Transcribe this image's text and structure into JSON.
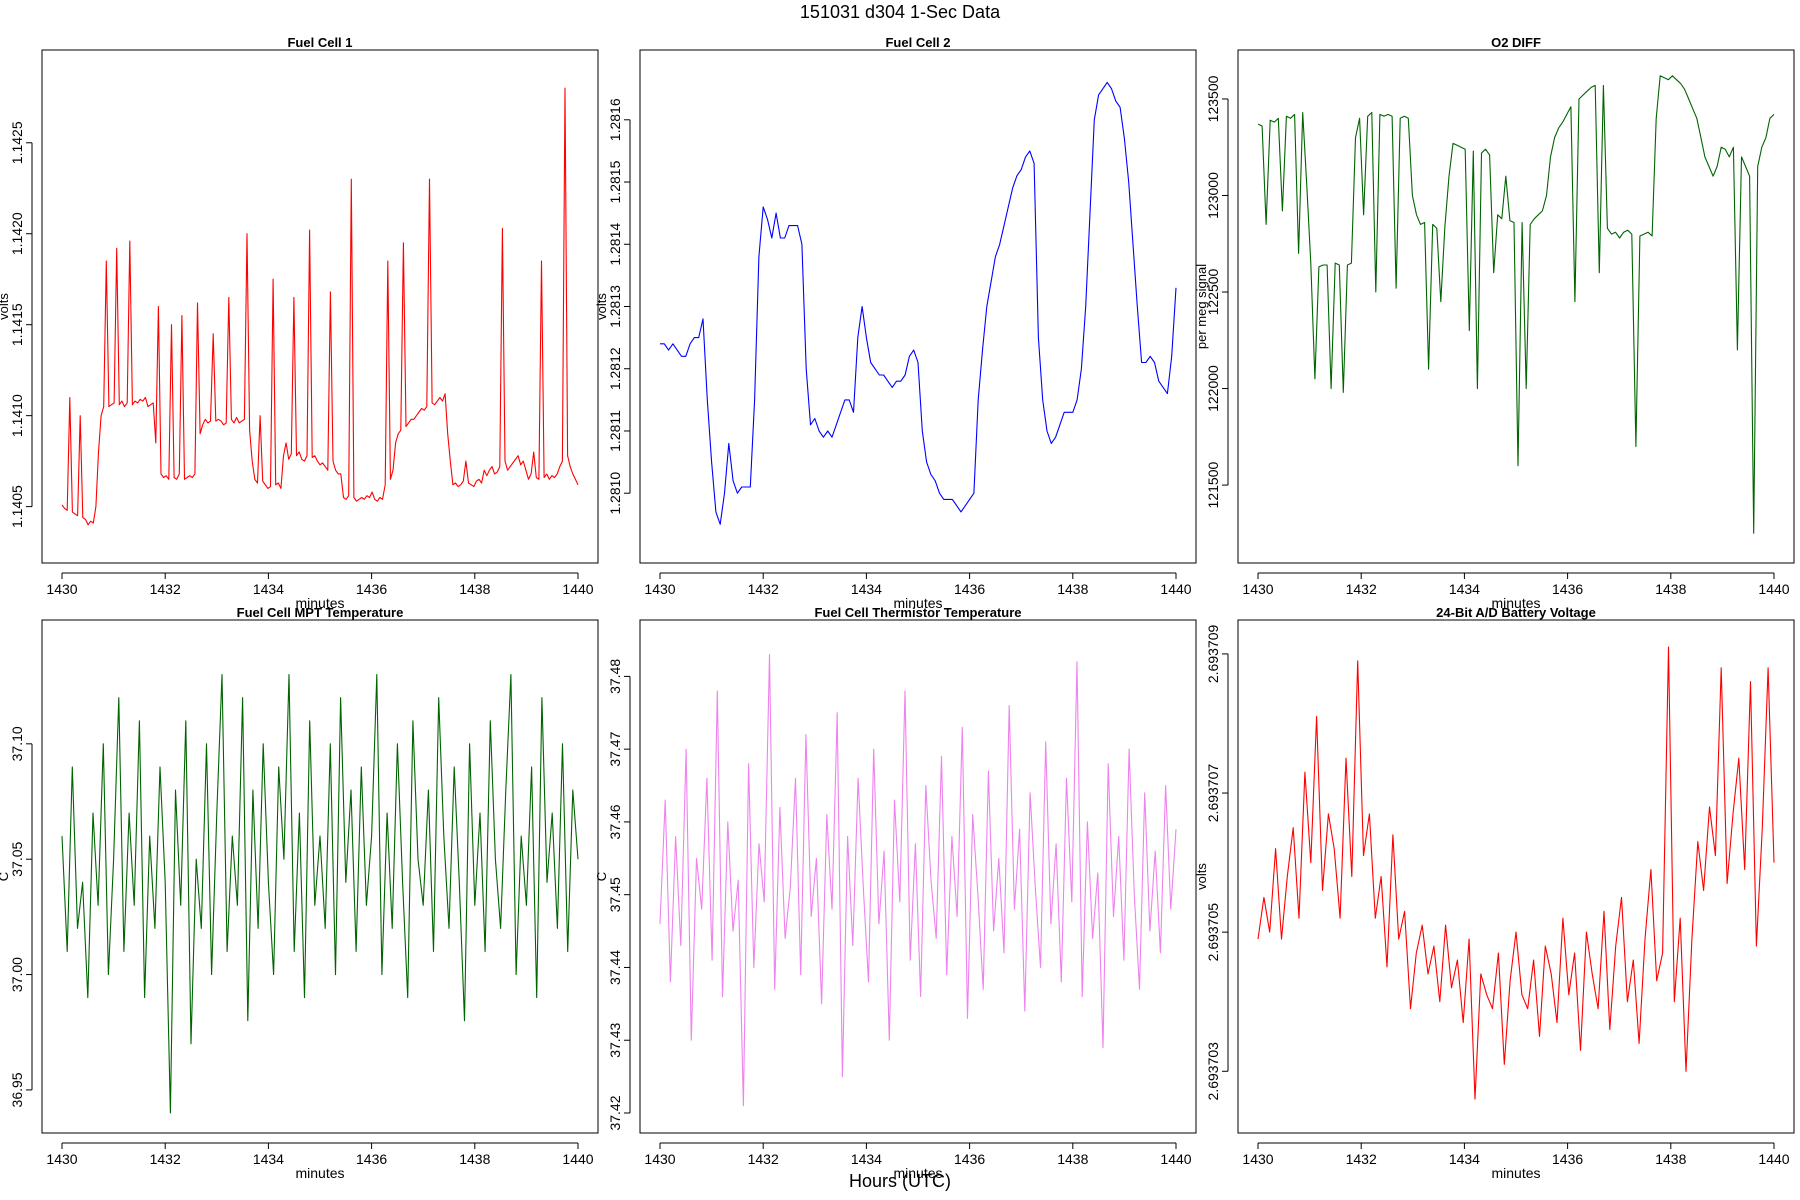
{
  "figure": {
    "title": "151031   d304   1-Sec Data",
    "xlabel": "Hours (UTC)"
  },
  "chart_data": [
    {
      "type": "line",
      "title": "Fuel Cell 1",
      "xlabel": "minutes",
      "ylabel": "volts",
      "color": "#ff0000",
      "xlim": [
        1430,
        1440
      ],
      "ylim": [
        1.1403,
        1.1429
      ],
      "xticks": [
        1430,
        1432,
        1434,
        1436,
        1438,
        1440
      ],
      "yticks": [
        1.1405,
        1.141,
        1.1415,
        1.142,
        1.1425
      ],
      "ytick_labels": [
        "1.1405",
        "1.1410",
        "1.1415",
        "1.1420",
        "1.1425"
      ],
      "series": [
        {
          "name": "Fuel Cell 1",
          "x_start": 1430,
          "x_end": 1440,
          "values": [
            1.14051,
            1.14049,
            1.14048,
            1.1411,
            1.14047,
            1.14046,
            1.14045,
            1.141,
            1.14044,
            1.14043,
            1.1404,
            1.14042,
            1.14041,
            1.1405,
            1.1408,
            1.141,
            1.14105,
            1.14185,
            1.14105,
            1.14106,
            1.14107,
            1.14192,
            1.14106,
            1.14108,
            1.14105,
            1.14107,
            1.14196,
            1.14106,
            1.14108,
            1.14107,
            1.14109,
            1.14108,
            1.1411,
            1.14105,
            1.14106,
            1.14107,
            1.14085,
            1.1416,
            1.14068,
            1.14066,
            1.14067,
            1.14065,
            1.1415,
            1.14066,
            1.14065,
            1.14068,
            1.14155,
            1.14065,
            1.14066,
            1.14067,
            1.14066,
            1.14068,
            1.14162,
            1.1409,
            1.14095,
            1.14098,
            1.14096,
            1.14097,
            1.14145,
            1.14097,
            1.14098,
            1.14097,
            1.14095,
            1.14096,
            1.14165,
            1.14098,
            1.14096,
            1.14099,
            1.14096,
            1.14097,
            1.14098,
            1.142,
            1.14092,
            1.14075,
            1.14065,
            1.14063,
            1.141,
            1.14064,
            1.14062,
            1.1406,
            1.14061,
            1.14175,
            1.14062,
            1.14063,
            1.1406,
            1.14078,
            1.14085,
            1.14076,
            1.14079,
            1.14165,
            1.14078,
            1.1408,
            1.14076,
            1.14075,
            1.14078,
            1.14202,
            1.14077,
            1.14078,
            1.14075,
            1.14073,
            1.14074,
            1.14072,
            1.1407,
            1.14168,
            1.14075,
            1.1407,
            1.14068,
            1.14068,
            1.14055,
            1.14054,
            1.14056,
            1.1423,
            1.14055,
            1.14053,
            1.14054,
            1.14055,
            1.14054,
            1.14056,
            1.14055,
            1.14058,
            1.14054,
            1.14053,
            1.14055,
            1.14054,
            1.14062,
            1.14185,
            1.14065,
            1.1407,
            1.14085,
            1.1409,
            1.14092,
            1.14195,
            1.14094,
            1.14096,
            1.14098,
            1.14098,
            1.141,
            1.14102,
            1.14104,
            1.14103,
            1.14105,
            1.1423,
            1.14107,
            1.14106,
            1.14108,
            1.1411,
            1.14108,
            1.14112,
            1.1409,
            1.14075,
            1.14062,
            1.14063,
            1.14061,
            1.14062,
            1.14064,
            1.14075,
            1.14063,
            1.14062,
            1.14061,
            1.14064,
            1.14065,
            1.14063,
            1.1407,
            1.14067,
            1.1407,
            1.14072,
            1.14068,
            1.14069,
            1.14072,
            1.14203,
            1.14075,
            1.1407,
            1.14072,
            1.14074,
            1.14076,
            1.14078,
            1.14073,
            1.14075,
            1.1407,
            1.14065,
            1.14068,
            1.1408,
            1.14066,
            1.14065,
            1.14185,
            1.14066,
            1.14068,
            1.14065,
            1.14067,
            1.14066,
            1.14068,
            1.14072,
            1.14075,
            1.1428,
            1.14078,
            1.14072,
            1.14068,
            1.14065,
            1.14062
          ]
        }
      ]
    },
    {
      "type": "line",
      "title": "Fuel Cell 2",
      "xlabel": "minutes",
      "ylabel": "volts",
      "color": "#0000ff",
      "xlim": [
        1430,
        1440
      ],
      "ylim": [
        1.28092,
        1.28168
      ],
      "xticks": [
        1430,
        1432,
        1434,
        1436,
        1438,
        1440
      ],
      "yticks": [
        1.281,
        1.2811,
        1.2812,
        1.2813,
        1.2814,
        1.2815,
        1.2816
      ],
      "ytick_labels": [
        "1.2810",
        "1.2811",
        "1.2812",
        "1.2813",
        "1.2814",
        "1.2815",
        "1.2816"
      ],
      "series": [
        {
          "name": "Fuel Cell 2",
          "x_start": 1430,
          "x_end": 1440,
          "values": [
            1.28124,
            1.28124,
            1.28123,
            1.28124,
            1.28123,
            1.28122,
            1.28122,
            1.28124,
            1.28125,
            1.28125,
            1.28128,
            1.28115,
            1.28105,
            1.28097,
            1.28095,
            1.281,
            1.28108,
            1.28102,
            1.281,
            1.28101,
            1.28101,
            1.28101,
            1.28115,
            1.28138,
            1.28146,
            1.28144,
            1.28141,
            1.28145,
            1.28141,
            1.28141,
            1.28143,
            1.28143,
            1.28143,
            1.2814,
            1.2812,
            1.28111,
            1.28112,
            1.2811,
            1.28109,
            1.2811,
            1.28109,
            1.28111,
            1.28113,
            1.28115,
            1.28115,
            1.28113,
            1.28125,
            1.2813,
            1.28125,
            1.28121,
            1.2812,
            1.28119,
            1.28119,
            1.28118,
            1.28117,
            1.28118,
            1.28118,
            1.28119,
            1.28122,
            1.28123,
            1.28121,
            1.2811,
            1.28105,
            1.28103,
            1.28102,
            1.281,
            1.28099,
            1.28099,
            1.28099,
            1.28098,
            1.28097,
            1.28098,
            1.28099,
            1.281,
            1.28115,
            1.28123,
            1.2813,
            1.28134,
            1.28138,
            1.2814,
            1.28143,
            1.28146,
            1.28149,
            1.28151,
            1.28152,
            1.28154,
            1.28155,
            1.28153,
            1.28125,
            1.28115,
            1.2811,
            1.28108,
            1.28109,
            1.28111,
            1.28113,
            1.28113,
            1.28113,
            1.28115,
            1.2812,
            1.2813,
            1.28145,
            1.2816,
            1.28164,
            1.28165,
            1.28166,
            1.28165,
            1.28163,
            1.28162,
            1.28157,
            1.2815,
            1.2814,
            1.2813,
            1.28121,
            1.28121,
            1.28122,
            1.28121,
            1.28118,
            1.28117,
            1.28116,
            1.28122,
            1.28133
          ]
        }
      ]
    },
    {
      "type": "line",
      "title": "O2 DIFF",
      "xlabel": "minutes",
      "ylabel": "per meg signal",
      "color": "#006400",
      "xlim": [
        1430,
        1440
      ],
      "ylim": [
        121200,
        123650
      ],
      "xticks": [
        1430,
        1432,
        1434,
        1436,
        1438,
        1440
      ],
      "yticks": [
        121500,
        122000,
        122500,
        123000,
        123500
      ],
      "ytick_labels": [
        "121500",
        "122000",
        "122500",
        "123000",
        "123500"
      ],
      "series": [
        {
          "name": "O2 DIFF",
          "x_start": 1430,
          "x_end": 1440,
          "values": [
            123370,
            123360,
            122850,
            123390,
            123380,
            123400,
            122920,
            123410,
            123400,
            123420,
            122700,
            123430,
            123050,
            122650,
            122050,
            122630,
            122640,
            122640,
            122000,
            122650,
            122640,
            121980,
            122640,
            122650,
            123300,
            123400,
            122900,
            123410,
            123430,
            122500,
            123420,
            123410,
            123420,
            123410,
            122520,
            123400,
            123410,
            123400,
            123000,
            122900,
            122850,
            122860,
            122100,
            122850,
            122830,
            122450,
            122840,
            123100,
            123270,
            123260,
            123250,
            123240,
            122300,
            123230,
            122000,
            123220,
            123240,
            123210,
            122600,
            122900,
            122880,
            123100,
            122870,
            122860,
            121600,
            122860,
            122000,
            122850,
            122880,
            122900,
            122920,
            123000,
            123200,
            123300,
            123350,
            123380,
            123420,
            123460,
            122450,
            123500,
            123520,
            123540,
            123560,
            123570,
            122600,
            123570,
            122830,
            122800,
            122810,
            122780,
            122810,
            122820,
            122800,
            121700,
            122790,
            122800,
            122810,
            122790,
            123400,
            123620,
            123610,
            123600,
            123620,
            123600,
            123580,
            123550,
            123500,
            123450,
            123400,
            123300,
            123200,
            123150,
            123100,
            123150,
            123250,
            123240,
            123200,
            123250,
            122200,
            123200,
            123150,
            123100,
            121250,
            123150,
            123250,
            123300,
            123400,
            123420
          ]
        }
      ]
    },
    {
      "type": "line",
      "title": "Fuel Cell MPT Temperature",
      "xlabel": "minutes",
      "ylabel": "C",
      "color": "#006400",
      "xlim": [
        1430,
        1440
      ],
      "ylim": [
        36.94,
        37.145
      ],
      "xticks": [
        1430,
        1432,
        1434,
        1436,
        1438,
        1440
      ],
      "yticks": [
        36.95,
        37.0,
        37.05,
        37.1
      ],
      "ytick_labels": [
        "36.95",
        "37.00",
        "37.05",
        "37.10"
      ],
      "series": [
        {
          "name": "MPT Temperature",
          "x_start": 1430,
          "x_end": 1440,
          "values": [
            37.06,
            37.01,
            37.09,
            37.02,
            37.04,
            36.99,
            37.07,
            37.03,
            37.1,
            37.0,
            37.05,
            37.12,
            37.01,
            37.07,
            37.03,
            37.11,
            36.99,
            37.06,
            37.02,
            37.09,
            37.04,
            36.94,
            37.08,
            37.03,
            37.11,
            36.97,
            37.05,
            37.02,
            37.1,
            37.0,
            37.07,
            37.13,
            37.01,
            37.06,
            37.03,
            37.12,
            36.98,
            37.08,
            37.02,
            37.1,
            37.04,
            37.0,
            37.09,
            37.05,
            37.13,
            37.01,
            37.07,
            36.99,
            37.11,
            37.03,
            37.06,
            37.02,
            37.1,
            37.0,
            37.12,
            37.04,
            37.08,
            37.01,
            37.09,
            37.03,
            37.06,
            37.13,
            37.0,
            37.07,
            37.02,
            37.1,
            37.04,
            36.99,
            37.11,
            37.05,
            37.03,
            37.08,
            37.01,
            37.12,
            37.06,
            37.02,
            37.09,
            37.04,
            36.98,
            37.1,
            37.03,
            37.07,
            37.01,
            37.11,
            37.05,
            37.02,
            37.08,
            37.13,
            37.0,
            37.06,
            37.03,
            37.09,
            36.99,
            37.12,
            37.04,
            37.07,
            37.02,
            37.1,
            37.01,
            37.08,
            37.05
          ]
        }
      ]
    },
    {
      "type": "line",
      "title": "Fuel Cell Thermistor Temperature",
      "xlabel": "minutes",
      "ylabel": "C",
      "color": "#ee82ee",
      "xlim": [
        1430,
        1440
      ],
      "ylim": [
        37.42,
        37.485
      ],
      "xticks": [
        1430,
        1432,
        1434,
        1436,
        1438,
        1440
      ],
      "yticks": [
        37.42,
        37.43,
        37.44,
        37.45,
        37.46,
        37.47,
        37.48
      ],
      "ytick_labels": [
        "37.42",
        "37.43",
        "37.44",
        "37.45",
        "37.46",
        "37.47",
        "37.48"
      ],
      "series": [
        {
          "name": "Thermistor Temperature",
          "x_start": 1430,
          "x_end": 1440,
          "values": [
            37.446,
            37.463,
            37.438,
            37.458,
            37.443,
            37.47,
            37.43,
            37.455,
            37.448,
            37.466,
            37.441,
            37.478,
            37.436,
            37.46,
            37.445,
            37.452,
            37.421,
            37.468,
            37.44,
            37.457,
            37.449,
            37.483,
            37.437,
            37.462,
            37.444,
            37.451,
            37.466,
            37.439,
            37.472,
            37.447,
            37.455,
            37.435,
            37.461,
            37.448,
            37.475,
            37.425,
            37.458,
            37.443,
            37.466,
            37.451,
            37.438,
            37.47,
            37.446,
            37.456,
            37.43,
            37.463,
            37.449,
            37.478,
            37.441,
            37.457,
            37.436,
            37.465,
            37.452,
            37.444,
            37.469,
            37.439,
            37.458,
            37.447,
            37.473,
            37.433,
            37.461,
            37.45,
            37.437,
            37.467,
            37.445,
            37.455,
            37.442,
            37.476,
            37.448,
            37.459,
            37.434,
            37.464,
            37.451,
            37.44,
            37.471,
            37.446,
            37.457,
            37.438,
            37.466,
            37.449,
            37.482,
            37.436,
            37.46,
            37.444,
            37.453,
            37.429,
            37.468,
            37.447,
            37.458,
            37.441,
            37.47,
            37.45,
            37.437,
            37.464,
            37.445,
            37.456,
            37.442,
            37.465,
            37.448,
            37.459
          ]
        }
      ]
    },
    {
      "type": "line",
      "title": "24-Bit A/D Battery Voltage",
      "xlabel": "minutes",
      "ylabel": "volts",
      "color": "#ff0000",
      "xlim": [
        1430,
        1440
      ],
      "ylim": [
        2.6937024,
        2.6937092
      ],
      "xticks": [
        1430,
        1432,
        1434,
        1436,
        1438,
        1440
      ],
      "yticks": [
        2.693703,
        2.693705,
        2.693707,
        2.693709
      ],
      "ytick_labels": [
        "2.693703",
        "2.693705",
        "2.693707",
        "2.693709"
      ],
      "series": [
        {
          "name": "Battery Voltage",
          "x_start": 1430,
          "x_end": 1440,
          "values": [
            2.6937049,
            2.6937055,
            2.693705,
            2.6937062,
            2.6937049,
            2.6937058,
            2.6937065,
            2.6937052,
            2.6937073,
            2.693706,
            2.6937081,
            2.6937056,
            2.6937067,
            2.6937062,
            2.6937052,
            2.6937075,
            2.6937058,
            2.6937089,
            2.6937061,
            2.6937067,
            2.6937052,
            2.6937058,
            2.6937045,
            2.6937064,
            2.6937049,
            2.6937053,
            2.6937039,
            2.6937047,
            2.6937051,
            2.6937044,
            2.6937048,
            2.693704,
            2.6937051,
            2.6937042,
            2.6937046,
            2.6937037,
            2.6937049,
            2.6937026,
            2.6937044,
            2.6937041,
            2.6937039,
            2.6937047,
            2.6937031,
            2.6937043,
            2.693705,
            2.6937041,
            2.6937039,
            2.6937046,
            2.6937035,
            2.6937048,
            2.6937044,
            2.6937037,
            2.6937052,
            2.6937041,
            2.6937047,
            2.6937033,
            2.693705,
            2.6937044,
            2.6937039,
            2.6937053,
            2.6937036,
            2.6937048,
            2.6937055,
            2.693704,
            2.6937046,
            2.6937034,
            2.6937049,
            2.6937059,
            2.6937043,
            2.6937047,
            2.6937091,
            2.693704,
            2.6937052,
            2.693703,
            2.6937049,
            2.6937063,
            2.6937056,
            2.6937068,
            2.6937061,
            2.6937088,
            2.6937057,
            2.6937067,
            2.6937075,
            2.6937059,
            2.6937086,
            2.6937048,
            2.6937065,
            2.6937088,
            2.693706
          ]
        }
      ]
    }
  ]
}
